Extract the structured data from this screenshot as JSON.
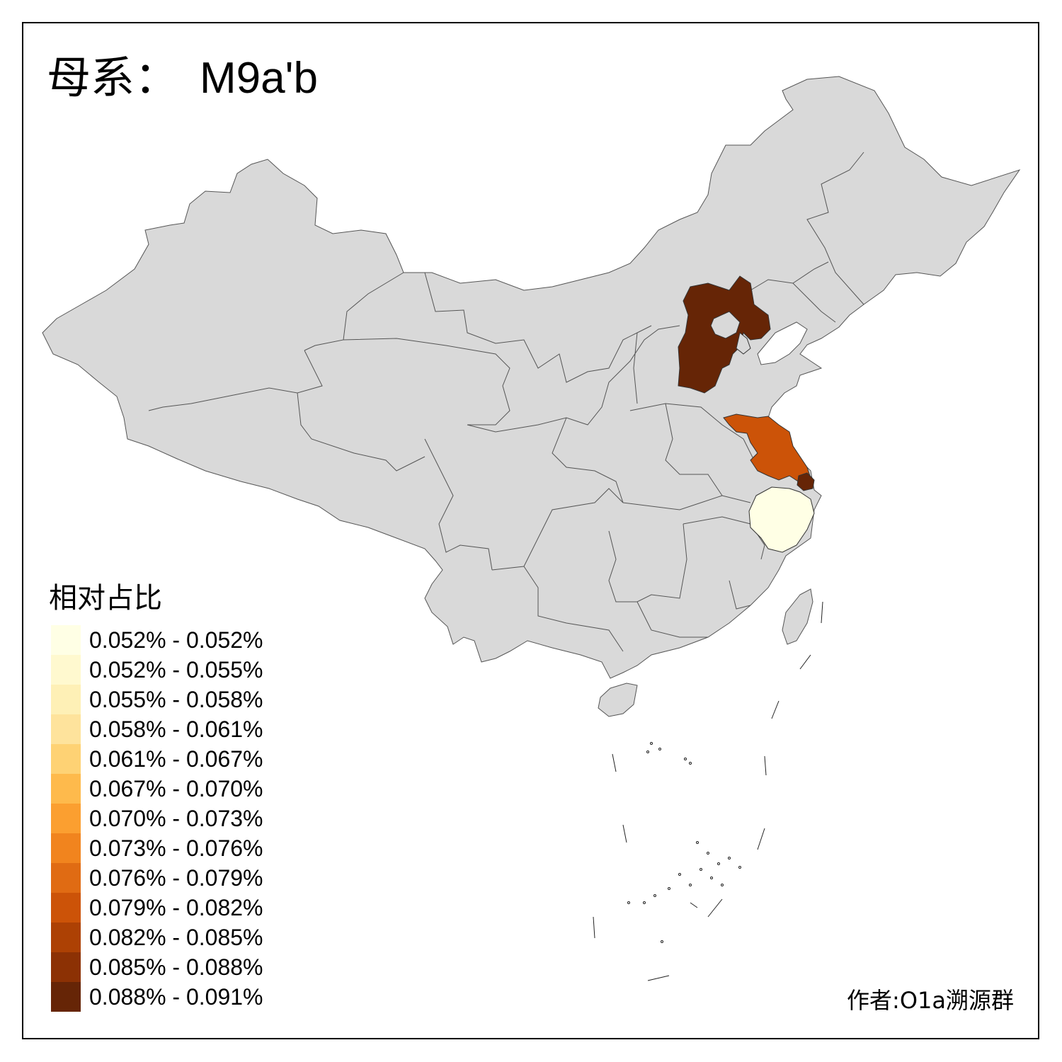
{
  "title": {
    "label": "母系：",
    "value": "M9a'b"
  },
  "legend": {
    "title": "相对占比",
    "items": [
      {
        "label": "0.052% - 0.052%",
        "color": "#FFFFE5"
      },
      {
        "label": "0.052% - 0.055%",
        "color": "#FFF9CF"
      },
      {
        "label": "0.055% - 0.058%",
        "color": "#FEF0B6"
      },
      {
        "label": "0.058% - 0.061%",
        "color": "#FEE39C"
      },
      {
        "label": "0.061% - 0.067%",
        "color": "#FED274"
      },
      {
        "label": "0.067% - 0.070%",
        "color": "#FEBA4C"
      },
      {
        "label": "0.070% - 0.073%",
        "color": "#FB9F30"
      },
      {
        "label": "0.073% - 0.076%",
        "color": "#F1841E"
      },
      {
        "label": "0.076% - 0.079%",
        "color": "#E06B13"
      },
      {
        "label": "0.079% - 0.082%",
        "color": "#CC5308"
      },
      {
        "label": "0.082% - 0.085%",
        "color": "#AD4104"
      },
      {
        "label": "0.085% - 0.088%",
        "color": "#8C3104"
      },
      {
        "label": "0.088% - 0.091%",
        "color": "#662506"
      }
    ]
  },
  "map": {
    "default_fill": "#D9D9D9",
    "highlighted": {
      "Hebei": "#662506",
      "Shanghai": "#662506",
      "Jiangsu": "#CC5308",
      "Zhejiang": "#FFFFE5"
    }
  },
  "credit": "作者:O1a溯源群"
}
